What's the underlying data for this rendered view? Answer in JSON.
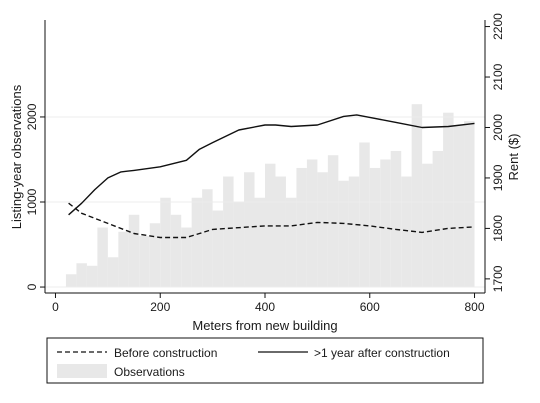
{
  "chart_data": {
    "type": "line",
    "title": "",
    "xlabel": "Meters from new building",
    "ylabel_left": "Listing-year observations",
    "ylabel_right": "Rent ($)",
    "x_ticks": [
      0,
      200,
      400,
      600,
      800
    ],
    "y_left_ticks": [
      0,
      1000,
      2000
    ],
    "y_right_ticks": [
      1700,
      1800,
      1900,
      2000,
      2100,
      2200
    ],
    "xlim": [
      -20,
      820
    ],
    "ylim_left": [
      -70,
      3140
    ],
    "ylim_right": [
      1672,
      2213
    ],
    "grid": "horizontal at left-axis major ticks",
    "legend_position": "bottom",
    "observations": {
      "name": "Observations",
      "bin_width": 20,
      "x": [
        30,
        50,
        70,
        90,
        110,
        130,
        150,
        170,
        190,
        210,
        230,
        250,
        270,
        290,
        310,
        330,
        350,
        370,
        390,
        410,
        430,
        450,
        470,
        490,
        510,
        530,
        550,
        570,
        590,
        610,
        630,
        650,
        670,
        690,
        710,
        730,
        750,
        770,
        790
      ],
      "values": [
        150,
        280,
        250,
        700,
        350,
        650,
        850,
        600,
        750,
        1050,
        850,
        700,
        1050,
        1150,
        900,
        1300,
        1000,
        1350,
        1050,
        1450,
        1300,
        1050,
        1400,
        1500,
        1350,
        1550,
        1250,
        1300,
        1700,
        1400,
        1500,
        1600,
        1300,
        2150,
        1450,
        1600,
        2050,
        1900,
        1950
      ]
    },
    "series": [
      {
        "name": "Before construction",
        "style": "dashed",
        "axis": "right",
        "x": [
          25,
          50,
          100,
          150,
          200,
          250,
          275,
          300,
          400,
          450,
          500,
          550,
          600,
          650,
          700,
          750,
          800
        ],
        "values": [
          1850,
          1830,
          1810,
          1790,
          1782,
          1782,
          1790,
          1798,
          1805,
          1805,
          1812,
          1810,
          1805,
          1798,
          1792,
          1800,
          1803
        ]
      },
      {
        "name": ">1 year after construction",
        "style": "solid",
        "axis": "right",
        "x": [
          25,
          50,
          75,
          100,
          125,
          150,
          200,
          250,
          275,
          300,
          350,
          400,
          420,
          450,
          500,
          550,
          575,
          600,
          650,
          700,
          750,
          800
        ],
        "values": [
          1827,
          1850,
          1877,
          1900,
          1912,
          1915,
          1922,
          1935,
          1957,
          1970,
          1995,
          2005,
          2005,
          2002,
          2005,
          2022,
          2025,
          2020,
          2010,
          2000,
          2002,
          2008
        ]
      }
    ],
    "legend": [
      {
        "label": "Before construction",
        "kind": "dashed-line"
      },
      {
        "label": ">1 year after construction",
        "kind": "solid-line"
      },
      {
        "label": "Observations",
        "kind": "bar"
      }
    ],
    "colors": {
      "line": "#111111",
      "bars": "#e8e8e8",
      "grid": "#ececec"
    }
  }
}
